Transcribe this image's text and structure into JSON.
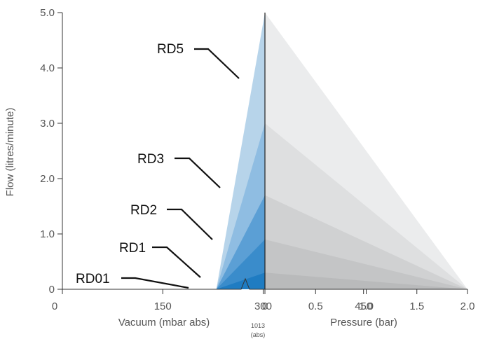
{
  "chart_data": {
    "type": "area",
    "title": "",
    "ylabel": "Flow (litres/minute)",
    "ylim": [
      0,
      5.0
    ],
    "y_ticks": [
      "0",
      "1.0",
      "2.0",
      "3.0",
      "4.0",
      "5.0"
    ],
    "vacuum_axis": {
      "label": "Vacuum (mbar abs)",
      "ticks": [
        "0",
        "150",
        "300",
        "450"
      ],
      "range_mbar_abs": [
        0,
        1013
      ]
    },
    "pressure_axis": {
      "label": "Pressure (bar)",
      "ticks": [
        "0",
        "0.5",
        "1.0",
        "1.5",
        "2.0"
      ],
      "range_bar": [
        0,
        2.0
      ]
    },
    "atmospheric_note": {
      "value": "1013",
      "unit": "(abs)"
    },
    "vacuum_zero_flow_at_mbar_abs": 230,
    "series": [
      {
        "name": "RD5",
        "peak_flow": 5.0,
        "vacuum_color": "#b7d4ea",
        "pressure_color": "#ebeced"
      },
      {
        "name": "RD3",
        "peak_flow": 3.0,
        "vacuum_color": "#8fbde2",
        "pressure_color": "#dedfe0"
      },
      {
        "name": "RD2",
        "peak_flow": 1.7,
        "vacuum_color": "#5b9fd5",
        "pressure_color": "#d0d1d2"
      },
      {
        "name": "RD1",
        "peak_flow": 0.9,
        "vacuum_color": "#3a8ccb",
        "pressure_color": "#c4c5c6"
      },
      {
        "name": "RD01",
        "peak_flow": 0.3,
        "vacuum_color": "#1f7cc2",
        "pressure_color": "#b9babb"
      }
    ]
  }
}
